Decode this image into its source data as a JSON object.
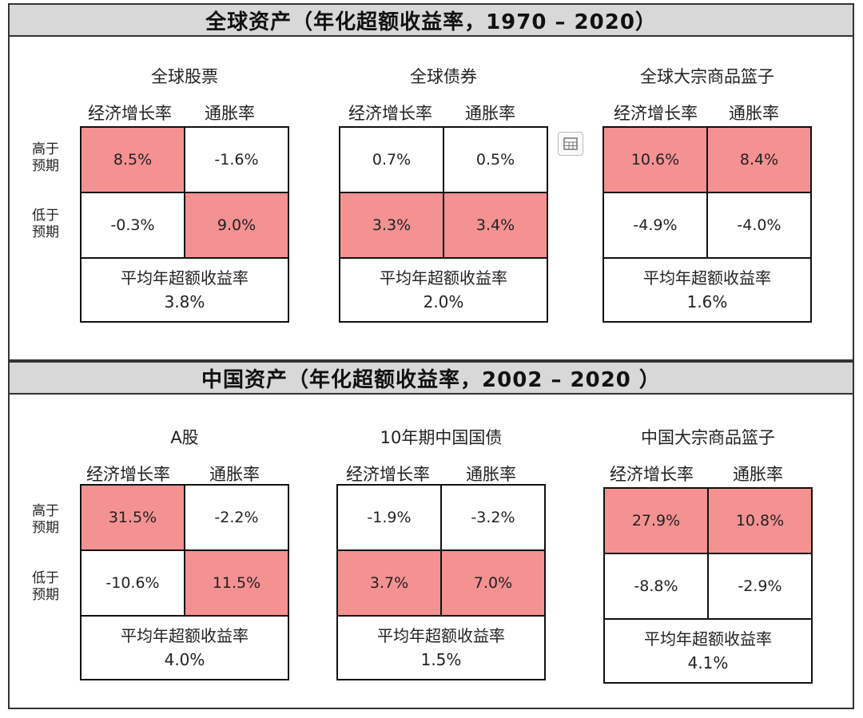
{
  "chart_data": [
    {
      "type": "table",
      "section_title": "全球资产（年化超额收益率，1970 – 2020）",
      "panels": [
        {
          "title": "全球股票",
          "col_labels": [
            "经济增长率",
            "通胀率"
          ],
          "row_labels": [
            "高于\n预期",
            "低于\n预期"
          ],
          "cells": [
            [
              "8.5%",
              "-1.6%"
            ],
            [
              "-0.3%",
              "9.0%"
            ]
          ],
          "highlight": [
            [
              true,
              false
            ],
            [
              false,
              true
            ]
          ],
          "avg_label": "平均年超额收益率",
          "avg_value": "3.8%"
        },
        {
          "title": "全球债券",
          "col_labels": [
            "经济增长率",
            "通胀率"
          ],
          "row_labels": [],
          "cells": [
            [
              "0.7%",
              "0.5%"
            ],
            [
              "3.3%",
              "3.4%"
            ]
          ],
          "highlight": [
            [
              false,
              false
            ],
            [
              true,
              true
            ]
          ],
          "avg_label": "平均年超额收益率",
          "avg_value": "2.0%"
        },
        {
          "title": "全球大宗商品篮子",
          "col_labels": [
            "经济增长率",
            "通胀率"
          ],
          "row_labels": [],
          "cells": [
            [
              "10.6%",
              "8.4%"
            ],
            [
              "-4.9%",
              "-4.0%"
            ]
          ],
          "highlight": [
            [
              true,
              true
            ],
            [
              false,
              false
            ]
          ],
          "avg_label": "平均年超额收益率",
          "avg_value": "1.6%"
        }
      ]
    },
    {
      "type": "table",
      "section_title": "中国资产（年化超额收益率，2002 – 2020 ）",
      "panels": [
        {
          "title": "A股",
          "col_labels": [
            "经济增长率",
            "通胀率"
          ],
          "row_labels": [
            "高于\n预期",
            "低于\n预期"
          ],
          "cells": [
            [
              "31.5%",
              "-2.2%"
            ],
            [
              "-10.6%",
              "11.5%"
            ]
          ],
          "highlight": [
            [
              true,
              false
            ],
            [
              false,
              true
            ]
          ],
          "avg_label": "平均年超额收益率",
          "avg_value": "4.0%"
        },
        {
          "title": "10年期中国国债",
          "col_labels": [
            "经济增长率",
            "通胀率"
          ],
          "row_labels": [],
          "cells": [
            [
              "-1.9%",
              "-3.2%"
            ],
            [
              "3.7%",
              "7.0%"
            ]
          ],
          "highlight": [
            [
              false,
              false
            ],
            [
              true,
              true
            ]
          ],
          "avg_label": "平均年超额收益率",
          "avg_value": "1.5%"
        },
        {
          "title": "中国大宗商品篮子",
          "col_labels": [
            "经济增长率",
            "通胀率"
          ],
          "row_labels": [],
          "cells": [
            [
              "27.9%",
              "10.8%"
            ],
            [
              "-8.8%",
              "-2.9%"
            ]
          ],
          "highlight": [
            [
              true,
              true
            ],
            [
              false,
              false
            ]
          ],
          "avg_label": "平均年超额收益率",
          "avg_value": "4.1%"
        }
      ]
    }
  ],
  "colors": {
    "highlight": "#f49191",
    "band": "#d8d8d8",
    "border": "#111111"
  },
  "icons": {
    "floating": "table-icon"
  }
}
